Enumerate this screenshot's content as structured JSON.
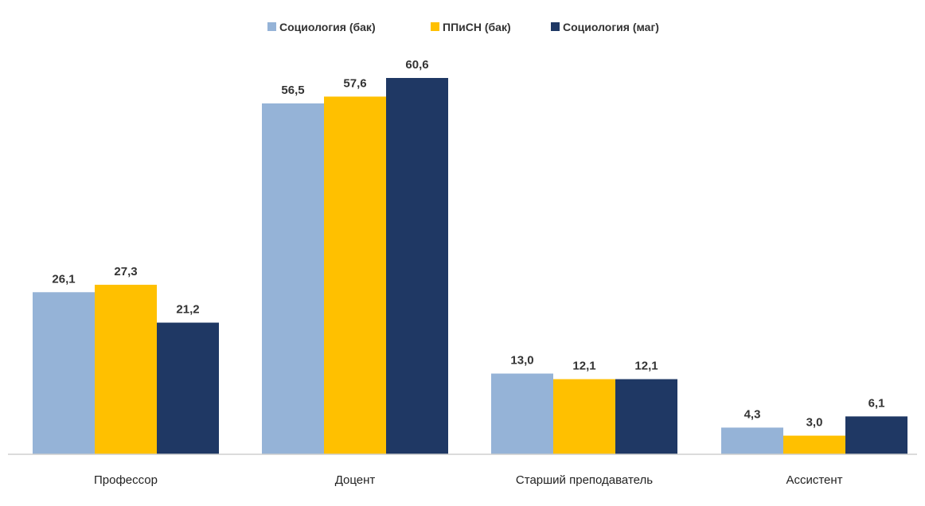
{
  "chart_data": {
    "type": "bar",
    "categories": [
      "Профессор",
      "Доцент",
      "Старший преподаватель",
      "Ассистент"
    ],
    "series": [
      {
        "name": "Социология (бак)",
        "color": "#95b3d7",
        "values": [
          26.1,
          56.5,
          13.0,
          4.3
        ],
        "labels": [
          "26,1",
          "56,5",
          "13,0",
          "4,3"
        ]
      },
      {
        "name": "ППиСН (бак)",
        "color": "#ffc000",
        "values": [
          27.3,
          57.6,
          12.1,
          3.0
        ],
        "labels": [
          "27,3",
          "57,6",
          "12,1",
          "3,0"
        ]
      },
      {
        "name": "Социология (маг)",
        "color": "#1f3864",
        "values": [
          21.2,
          60.6,
          12.1,
          6.1
        ],
        "labels": [
          "21,2",
          "60,6",
          "12,1",
          "6,1"
        ]
      }
    ],
    "legend_position": "top-center",
    "grid": false,
    "ylim": [
      0,
      60.6
    ]
  }
}
